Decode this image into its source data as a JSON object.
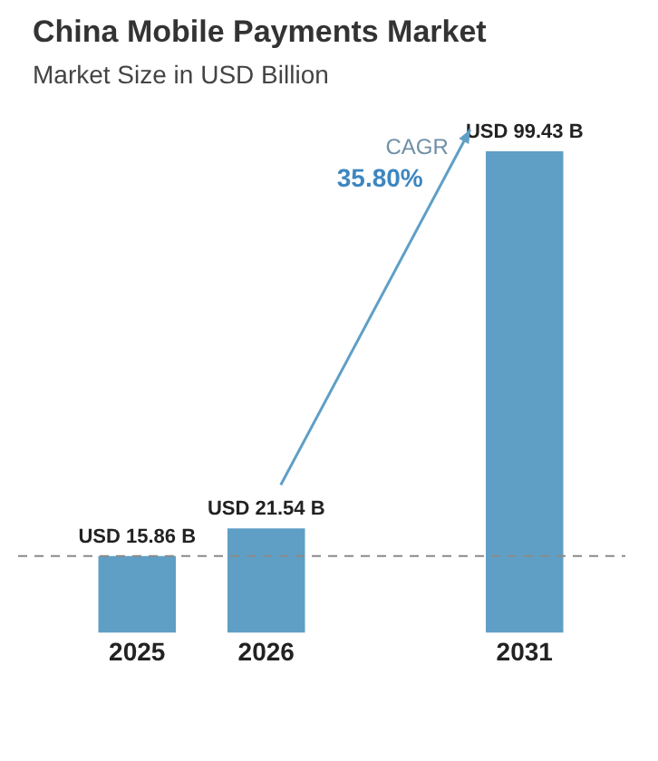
{
  "chart_data": {
    "type": "bar",
    "title": "China Mobile Payments Market",
    "subtitle": "Market Size in USD Billion",
    "categories": [
      "2025",
      "2026",
      null,
      "2031"
    ],
    "values": [
      15.86,
      21.54,
      null,
      99.43
    ],
    "value_labels": [
      "USD 15.86 B",
      "USD 21.54 B",
      null,
      "USD 99.43 B"
    ],
    "color": "#5f9fc5",
    "ref_lines": [
      {
        "axis": "y",
        "value": 15.86,
        "color": "#8a8a8a",
        "line_style": "dashed"
      }
    ],
    "annotations": [
      "CAGR",
      "35.80%"
    ],
    "grid": false,
    "legend": false
  }
}
